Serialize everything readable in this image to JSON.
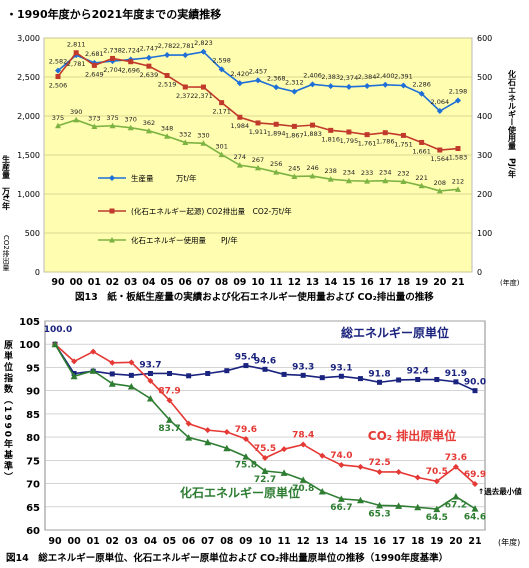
{
  "header": "・1990年度から2021年度までの実績推移",
  "chart_data": [
    {
      "type": "line",
      "caption": "図13　紙・板紙生産量の実績および化石エネルギー使用量および CO₂排出量の推移",
      "ylabel_left": "生産量　万t/年",
      "ylabel_left_sub": "CO2排出量",
      "ylabel_right": "化石エネルギー使用量　PJ/年",
      "ylim_left": [
        0,
        3000
      ],
      "ylim_right": [
        0,
        600
      ],
      "yticks_left": [
        "0",
        "500",
        "1,000",
        "1,500",
        "2,000",
        "2,500",
        "3,000"
      ],
      "yticks_right": [
        "0",
        "100",
        "200",
        "300",
        "400",
        "500",
        "600"
      ],
      "categories": [
        "90",
        "00",
        "01",
        "02",
        "03",
        "04",
        "05",
        "06",
        "07",
        "08",
        "09",
        "10",
        "11",
        "12",
        "13",
        "14",
        "15",
        "16",
        "17",
        "18",
        "19",
        "20",
        "21"
      ],
      "x_unit": "(年度)",
      "series": [
        {
          "name": "生産量　　　万t/年",
          "axis": "left",
          "color": "#1f6fd8",
          "values": [
            2582,
            2781,
            2681,
            2704,
            2724,
            2747,
            2782,
            2781,
            2823,
            2598,
            2420,
            2457,
            2368,
            2312,
            2406,
            2383,
            2374,
            2384,
            2400,
            2391,
            2286,
            2064,
            2198
          ],
          "labels": [
            "2,582",
            "2,781",
            "2,681",
            "2,704",
            "2,724",
            "2,747",
            "2,782",
            "2,781",
            "2,823",
            "2,598",
            "2,420",
            "2,457",
            "2,368",
            "2,312",
            "2,406",
            "2,383",
            "2,374",
            "2,384",
            "2,400",
            "2,391",
            "2,286",
            "2,064",
            "2,198"
          ]
        },
        {
          "name": "(化石エネルギー起源) CO2排出量　CO2-万t/年",
          "axis": "left",
          "color": "#c0392b",
          "values": [
            2506,
            2811,
            2649,
            2738,
            2696,
            2639,
            2519,
            2372,
            2371,
            2171,
            1984,
            1911,
            1894,
            1867,
            1883,
            1816,
            1795,
            1761,
            1786,
            1751,
            1661,
            1564,
            1583
          ],
          "labels": [
            "2,506",
            "2,811",
            "2,649",
            "2,738",
            "2,696",
            "2,639",
            "2,519",
            "2,372",
            "2,371",
            "2,171",
            "1,984",
            "1,911",
            "1,894",
            "1,867",
            "1,883",
            "1,816",
            "1,795",
            "1,761",
            "1,786",
            "1,751",
            "1,661",
            "1,564",
            "1,583"
          ]
        },
        {
          "name": "化石エネルギー使用量　　PJ/年",
          "axis": "right",
          "color": "#7cb342",
          "values": [
            375,
            390,
            373,
            375,
            370,
            362,
            348,
            332,
            330,
            301,
            274,
            267,
            256,
            245,
            246,
            238,
            234,
            233,
            234,
            232,
            221,
            208,
            212
          ],
          "labels": [
            "375",
            "390",
            "373",
            "375",
            "370",
            "362",
            "348",
            "332",
            "330",
            "301",
            "274",
            "267",
            "256",
            "245",
            "246",
            "238",
            "234",
            "233",
            "234",
            "232",
            "221",
            "208",
            "212"
          ]
        }
      ]
    },
    {
      "type": "line",
      "caption": "図14　総エネルギー原単位、化石エネルギー原単位および CO₂排出量原単位の推移（1990年度基準）",
      "ylabel": "原単位指数（1990年基準）",
      "ylim": [
        60,
        105
      ],
      "yticks": [
        "60",
        "65",
        "70",
        "75",
        "80",
        "85",
        "90",
        "95",
        "100",
        "105"
      ],
      "categories": [
        "90",
        "00",
        "01",
        "02",
        "03",
        "04",
        "05",
        "06",
        "07",
        "08",
        "09",
        "10",
        "11",
        "12",
        "13",
        "14",
        "15",
        "16",
        "17",
        "18",
        "19",
        "20",
        "21"
      ],
      "x_unit": "(年度)",
      "annotation": "↑過去最小値",
      "base_label": "100.0",
      "series": [
        {
          "name": "総エネルギー原単位",
          "color": "#1a237e",
          "values": [
            100.0,
            93.7,
            94.2,
            93.6,
            93.3,
            93.7,
            93.7,
            93.2,
            93.7,
            94.3,
            95.4,
            94.6,
            93.5,
            93.3,
            92.8,
            93.1,
            92.6,
            91.8,
            92.3,
            92.4,
            92.4,
            91.9,
            90.0
          ],
          "labels": [
            {
              "i": 5,
              "t": "93.7"
            },
            {
              "i": 10,
              "t": "95.4"
            },
            {
              "i": 11,
              "t": "94.6"
            },
            {
              "i": 13,
              "t": "93.3"
            },
            {
              "i": 15,
              "t": "93.1"
            },
            {
              "i": 17,
              "t": "91.8"
            },
            {
              "i": 19,
              "t": "92.4"
            },
            {
              "i": 21,
              "t": "91.9"
            },
            {
              "i": 22,
              "t": "90.0"
            }
          ]
        },
        {
          "name": "CO₂ 排出原単位",
          "color": "#e53935",
          "values": [
            100.0,
            96.3,
            98.4,
            96.0,
            96.1,
            92.1,
            87.9,
            82.9,
            81.5,
            81.1,
            79.6,
            75.5,
            77.4,
            78.4,
            76.0,
            74.0,
            73.6,
            72.5,
            72.5,
            71.3,
            70.5,
            73.6,
            69.9
          ],
          "labels": [
            {
              "i": 6,
              "t": "87.9"
            },
            {
              "i": 10,
              "t": "79.6"
            },
            {
              "i": 11,
              "t": "75.5"
            },
            {
              "i": 13,
              "t": "78.4"
            },
            {
              "i": 15,
              "t": "74.0"
            },
            {
              "i": 17,
              "t": "72.5"
            },
            {
              "i": 20,
              "t": "70.5"
            },
            {
              "i": 21,
              "t": "73.6"
            },
            {
              "i": 22,
              "t": "69.9"
            }
          ]
        },
        {
          "name": "化石エネルギー原単位",
          "color": "#2e7d32",
          "values": [
            100.0,
            93.1,
            94.3,
            91.5,
            90.9,
            88.3,
            83.7,
            79.9,
            78.9,
            77.6,
            75.8,
            72.7,
            72.3,
            70.8,
            68.3,
            66.7,
            66.4,
            65.3,
            65.2,
            64.9,
            64.5,
            67.2,
            64.6
          ],
          "labels": [
            {
              "i": 6,
              "t": "83.7"
            },
            {
              "i": 10,
              "t": "75.8"
            },
            {
              "i": 11,
              "t": "72.7"
            },
            {
              "i": 13,
              "t": "70.8"
            },
            {
              "i": 15,
              "t": "66.7"
            },
            {
              "i": 17,
              "t": "65.3"
            },
            {
              "i": 20,
              "t": "64.5"
            },
            {
              "i": 21,
              "t": "67.2"
            },
            {
              "i": 22,
              "t": "64.6"
            }
          ]
        }
      ]
    }
  ]
}
